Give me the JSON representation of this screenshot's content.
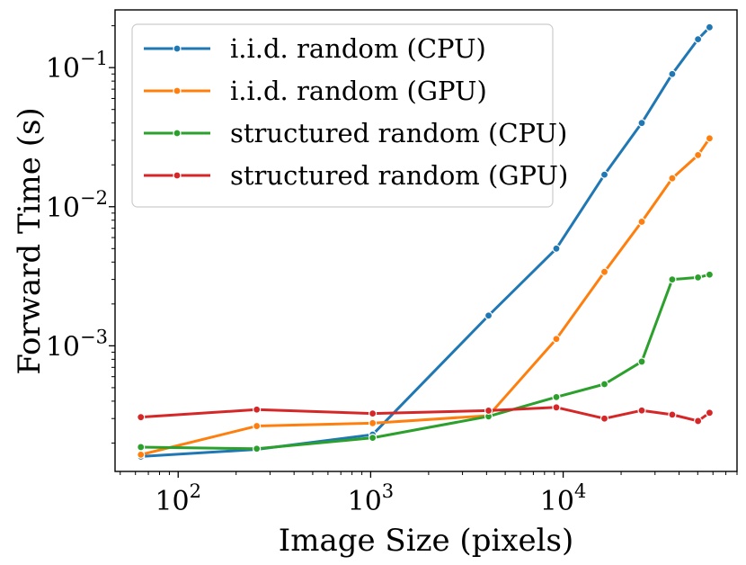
{
  "chart_data": {
    "type": "line",
    "xlabel": "Image Size (pixels)",
    "ylabel": "Forward Time (s)",
    "xscale": "log",
    "yscale": "log",
    "xlim": [
      47,
      80000
    ],
    "ylim": [
      0.000125,
      0.26
    ],
    "grid": false,
    "legend_position": "top-left",
    "x_ticks": [
      {
        "base": "10",
        "exp": "2",
        "value": 100
      },
      {
        "base": "10",
        "exp": "3",
        "value": 1000
      },
      {
        "base": "10",
        "exp": "4",
        "value": 10000
      }
    ],
    "y_ticks": [
      {
        "base": "10",
        "exp": "−3",
        "value": 0.001
      },
      {
        "base": "10",
        "exp": "−2",
        "value": 0.01
      },
      {
        "base": "10",
        "exp": "−1",
        "value": 0.1
      }
    ],
    "series": [
      {
        "name": "i.i.d. random (CPU)",
        "color": "#1f77b4",
        "x": [
          64,
          256,
          1024,
          4096,
          9216,
          16384,
          25600,
          36864,
          50176,
          57600
        ],
        "y": [
          0.00016,
          0.00018,
          0.00023,
          0.00165,
          0.005,
          0.017,
          0.04,
          0.09,
          0.16,
          0.195
        ]
      },
      {
        "name": "i.i.d. random (GPU)",
        "color": "#ff7f0e",
        "x": [
          64,
          256,
          1024,
          4096,
          9216,
          16384,
          25600,
          36864,
          50176,
          57600
        ],
        "y": [
          0.000165,
          0.000265,
          0.000278,
          0.000315,
          0.00112,
          0.0034,
          0.0078,
          0.016,
          0.0235,
          0.031
        ]
      },
      {
        "name": "structured random (CPU)",
        "color": "#2ca02c",
        "x": [
          64,
          256,
          1024,
          4096,
          9216,
          16384,
          25600,
          36864,
          50176,
          57600
        ],
        "y": [
          0.000187,
          0.000182,
          0.000218,
          0.000311,
          0.000428,
          0.00053,
          0.00077,
          0.003,
          0.0031,
          0.00325
        ]
      },
      {
        "name": "structured random (GPU)",
        "color": "#d62728",
        "x": [
          64,
          256,
          1024,
          4096,
          9216,
          16384,
          25600,
          36864,
          50176,
          57600
        ],
        "y": [
          0.000307,
          0.000348,
          0.000326,
          0.000342,
          0.000361,
          0.0003,
          0.000343,
          0.00032,
          0.000288,
          0.00033
        ]
      }
    ]
  }
}
